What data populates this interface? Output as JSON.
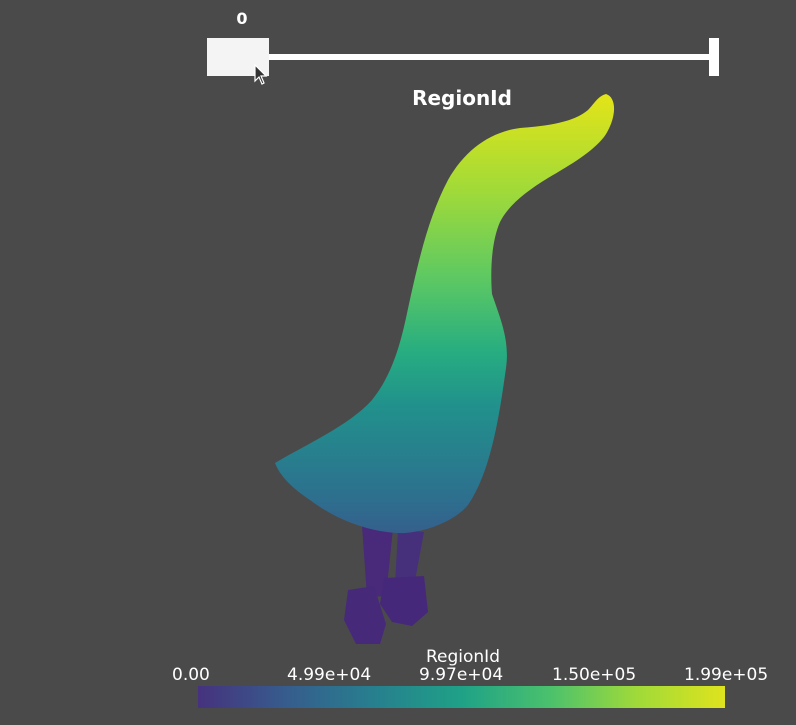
{
  "slider": {
    "value_label": "0"
  },
  "scene": {
    "title": "RegionId"
  },
  "colorbar": {
    "title": "RegionId",
    "tick_labels": [
      "0.00",
      "4.99e+04",
      "9.97e+04",
      "1.50e+05",
      "1.99e+05"
    ],
    "colormap_stops": [
      "#46327e",
      "#365c8d",
      "#277f8e",
      "#1fa187",
      "#4ac16d",
      "#a0da39",
      "#dfe31d"
    ]
  },
  "colors": {
    "background": "#4a4a4a",
    "text": "#ffffff",
    "slider_track": "#ffffff",
    "slider_handle": "#f4f4f4"
  }
}
